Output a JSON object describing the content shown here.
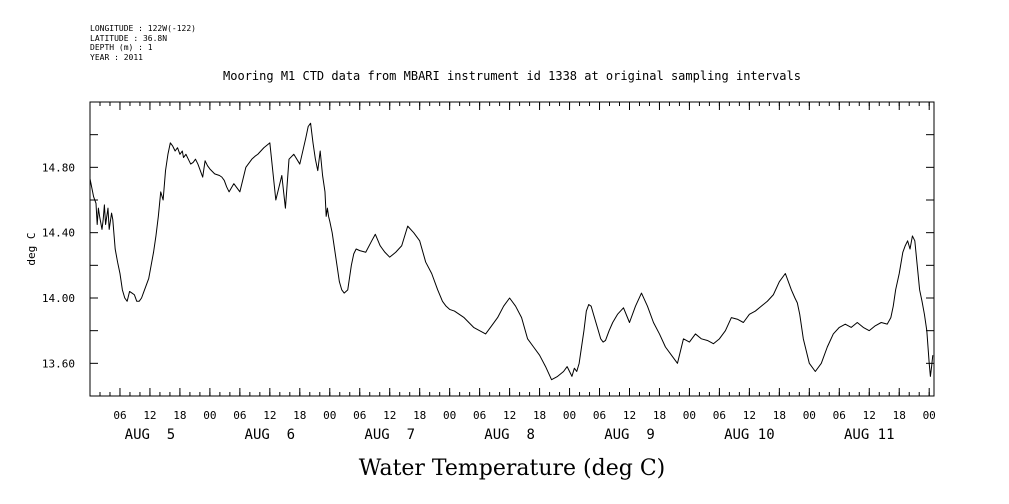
{
  "header": {
    "meta_lines": [
      "LONGITUDE : 122W(-122)",
      "LATITUDE : 36.8N",
      "DEPTH (m) : 1",
      "YEAR : 2011"
    ]
  },
  "chart_data": {
    "type": "line",
    "title": "Mooring M1 CTD data from MBARI instrument id 1338 at original sampling intervals",
    "xlabel": "Water Temperature (deg C)",
    "ylabel": "deg C",
    "ylim": [
      13.4,
      15.2
    ],
    "xlim": [
      4.0,
      11.04
    ],
    "grid": false,
    "y_ticks": [
      13.6,
      14.0,
      14.4,
      14.8
    ],
    "y_tick_labels": [
      "13.60",
      "14.00",
      "14.40",
      "14.80"
    ],
    "hour_tick_labels": [
      "06",
      "12",
      "18",
      "00",
      "06",
      "12",
      "18",
      "00",
      "06",
      "12",
      "18",
      "00",
      "06",
      "12",
      "18",
      "00",
      "06",
      "12",
      "18",
      "00",
      "06",
      "12",
      "18",
      "00",
      "06",
      "12",
      "18",
      "00"
    ],
    "day_labels": [
      "AUG  5",
      "AUG  6",
      "AUG  7",
      "AUG  8",
      "AUG  9",
      "AUG 10",
      "AUG 11"
    ],
    "series": [
      {
        "x": [
          4.0,
          4.03,
          4.05,
          4.06,
          4.07,
          4.08,
          4.1,
          4.11,
          4.12,
          4.13,
          4.15,
          4.16,
          4.18,
          4.19,
          4.21,
          4.23,
          4.25,
          4.27,
          4.29,
          4.31,
          4.33,
          4.35,
          4.37,
          4.39,
          4.41,
          4.43,
          4.45,
          4.47,
          4.49,
          4.51,
          4.53,
          4.55,
          4.57,
          4.59,
          4.61,
          4.63,
          4.65,
          4.67,
          4.69,
          4.71,
          4.73,
          4.75,
          4.77,
          4.78,
          4.8,
          4.82,
          4.84,
          4.86,
          4.88,
          4.9,
          4.92,
          4.94,
          4.96,
          4.98,
          5.0,
          5.04,
          5.08,
          5.1,
          5.12,
          5.14,
          5.16,
          5.2,
          5.25,
          5.3,
          5.35,
          5.38,
          5.4,
          5.45,
          5.5,
          5.55,
          5.6,
          5.63,
          5.66,
          5.7,
          5.75,
          5.8,
          5.82,
          5.84,
          5.86,
          5.88,
          5.9,
          5.92,
          5.94,
          5.96,
          5.97,
          5.98,
          5.99,
          6.0,
          6.02,
          6.04,
          6.06,
          6.08,
          6.1,
          6.12,
          6.15,
          6.18,
          6.2,
          6.22,
          6.25,
          6.3,
          6.35,
          6.38,
          6.42,
          6.46,
          6.5,
          6.55,
          6.6,
          6.65,
          6.7,
          6.75,
          6.8,
          6.85,
          6.9,
          6.94,
          6.97,
          7.0,
          7.04,
          7.08,
          7.12,
          7.16,
          7.2,
          7.25,
          7.3,
          7.35,
          7.4,
          7.45,
          7.5,
          7.55,
          7.6,
          7.65,
          7.7,
          7.75,
          7.8,
          7.85,
          7.9,
          7.95,
          7.98,
          8.0,
          8.02,
          8.04,
          8.06,
          8.08,
          8.1,
          8.12,
          8.14,
          8.16,
          8.18,
          8.2,
          8.22,
          8.24,
          8.26,
          8.28,
          8.3,
          8.33,
          8.36,
          8.4,
          8.45,
          8.5,
          8.55,
          8.6,
          8.65,
          8.7,
          8.75,
          8.8,
          8.85,
          8.9,
          8.95,
          9.0,
          9.05,
          9.1,
          9.15,
          9.2,
          9.25,
          9.3,
          9.35,
          9.4,
          9.45,
          9.5,
          9.55,
          9.6,
          9.65,
          9.7,
          9.75,
          9.8,
          9.85,
          9.88,
          9.9,
          9.92,
          9.95,
          10.0,
          10.05,
          10.1,
          10.15,
          10.2,
          10.25,
          10.3,
          10.35,
          10.4,
          10.45,
          10.5,
          10.55,
          10.6,
          10.65,
          10.68,
          10.7,
          10.72,
          10.75,
          10.78,
          10.8,
          10.82,
          10.84,
          10.86,
          10.88,
          10.9,
          10.92,
          10.94,
          10.96,
          10.98,
          11.0,
          11.01,
          11.02,
          11.03
        ],
        "y": [
          14.73,
          14.62,
          14.58,
          14.45,
          14.55,
          14.5,
          14.42,
          14.48,
          14.57,
          14.45,
          14.55,
          14.42,
          14.52,
          14.48,
          14.3,
          14.22,
          14.15,
          14.05,
          14.0,
          13.98,
          14.04,
          14.03,
          14.02,
          13.98,
          13.98,
          14.0,
          14.04,
          14.08,
          14.12,
          14.2,
          14.28,
          14.38,
          14.5,
          14.65,
          14.6,
          14.78,
          14.88,
          14.95,
          14.93,
          14.9,
          14.92,
          14.88,
          14.9,
          14.86,
          14.88,
          14.85,
          14.82,
          14.83,
          14.85,
          14.82,
          14.78,
          14.74,
          14.84,
          14.81,
          14.79,
          14.76,
          14.75,
          14.74,
          14.72,
          14.68,
          14.65,
          14.7,
          14.65,
          14.8,
          14.85,
          14.87,
          14.88,
          14.92,
          14.95,
          14.6,
          14.75,
          14.55,
          14.85,
          14.88,
          14.82,
          14.98,
          15.05,
          15.07,
          14.95,
          14.85,
          14.78,
          14.9,
          14.75,
          14.65,
          14.5,
          14.55,
          14.5,
          14.47,
          14.4,
          14.3,
          14.2,
          14.1,
          14.05,
          14.03,
          14.05,
          14.2,
          14.27,
          14.3,
          14.29,
          14.28,
          14.35,
          14.39,
          14.32,
          14.28,
          14.25,
          14.28,
          14.32,
          14.44,
          14.4,
          14.35,
          14.22,
          14.15,
          14.05,
          13.98,
          13.95,
          13.93,
          13.92,
          13.9,
          13.88,
          13.85,
          13.82,
          13.8,
          13.78,
          13.83,
          13.88,
          13.95,
          14.0,
          13.95,
          13.88,
          13.75,
          13.7,
          13.65,
          13.58,
          13.5,
          13.52,
          13.55,
          13.58,
          13.55,
          13.52,
          13.57,
          13.55,
          13.6,
          13.7,
          13.8,
          13.92,
          13.96,
          13.95,
          13.9,
          13.85,
          13.8,
          13.75,
          13.73,
          13.74,
          13.8,
          13.85,
          13.9,
          13.94,
          13.85,
          13.95,
          14.03,
          13.95,
          13.85,
          13.78,
          13.7,
          13.65,
          13.6,
          13.75,
          13.73,
          13.78,
          13.75,
          13.74,
          13.72,
          13.75,
          13.8,
          13.88,
          13.87,
          13.85,
          13.9,
          13.92,
          13.95,
          13.98,
          14.02,
          14.1,
          14.15,
          14.05,
          14.0,
          13.97,
          13.9,
          13.75,
          13.6,
          13.55,
          13.6,
          13.7,
          13.78,
          13.82,
          13.84,
          13.82,
          13.85,
          13.82,
          13.8,
          13.83,
          13.85,
          13.84,
          13.88,
          13.95,
          14.05,
          14.15,
          14.28,
          14.32,
          14.35,
          14.3,
          14.38,
          14.35,
          14.2,
          14.05,
          13.98,
          13.9,
          13.8,
          13.6,
          13.52,
          13.58,
          13.65
        ]
      }
    ]
  }
}
